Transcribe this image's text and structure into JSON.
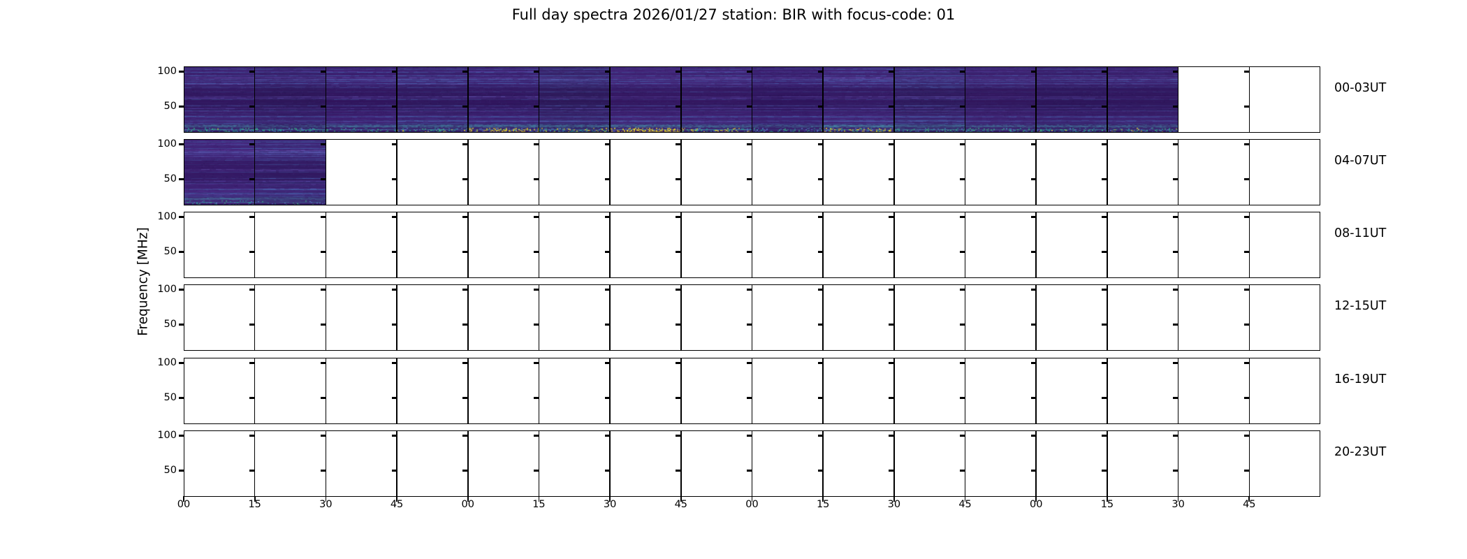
{
  "title": "Full day spectra 2026/01/27 station: BIR with focus-code: 01",
  "y_axis_label": "Frequency [MHz]",
  "y_tick_labels": [
    "100",
    "50"
  ],
  "x_tick_labels": [
    "00",
    "15",
    "30",
    "45",
    "00",
    "15",
    "30",
    "45",
    "00",
    "15",
    "30",
    "45",
    "00",
    "15",
    "30",
    "45"
  ],
  "rows": [
    {
      "label": "00-03UT",
      "filled_segments": 14,
      "low_band_activity": [
        0.5,
        0.45,
        0.4,
        0.55,
        0.8,
        0.6,
        0.95,
        0.65,
        0.45,
        0.7,
        0.35,
        0.4,
        0.5,
        0.55
      ]
    },
    {
      "label": "04-07UT",
      "filled_segments": 2,
      "low_band_activity": [
        0.28,
        0.12
      ]
    },
    {
      "label": "08-11UT",
      "filled_segments": 0,
      "low_band_activity": []
    },
    {
      "label": "12-15UT",
      "filled_segments": 0,
      "low_band_activity": []
    },
    {
      "label": "16-19UT",
      "filled_segments": 0,
      "low_band_activity": []
    },
    {
      "label": "20-23UT",
      "filled_segments": 0,
      "low_band_activity": []
    }
  ],
  "colors": {
    "background": "#ffffff",
    "axis": "#000000",
    "spectro_base": "#3a1c6a",
    "spectro_base_row2": "#3e1e70",
    "striation_purple": "#62549e",
    "striation_blue": "#4864af",
    "low_band_cyan": "#46aab4",
    "speckle_cyan": "#21918c",
    "speckle_green": "#35b779",
    "speckle_light_green": "#5ec962",
    "speckle_yellow": "#fde725"
  },
  "chart_data": {
    "type": "heatmap",
    "title": "Full day spectra 2026/01/27 station: BIR with focus-code: 01",
    "station": "BIR",
    "date": "2026/01/27",
    "focus_code": "01",
    "ylabel": "Frequency [MHz]",
    "y_ticks_mhz": [
      50,
      100
    ],
    "ylim_mhz": [
      10,
      110
    ],
    "x_tick_labels": [
      "00",
      "15",
      "30",
      "45",
      "00",
      "15",
      "30",
      "45",
      "00",
      "15",
      "30",
      "45",
      "00",
      "15",
      "30",
      "45"
    ],
    "segment_minutes": 15,
    "segments_per_row": 16,
    "colormap": "viridis",
    "legend_position": "right-of-rows",
    "grid": "15-minute segment borders",
    "row_windows": [
      "00-03UT",
      "04-07UT",
      "08-11UT",
      "12-15UT",
      "16-19UT",
      "20-23UT"
    ],
    "coverage": [
      {
        "window": "00-03UT",
        "filled_segments": 14,
        "data_from": "00:00",
        "data_to": "03:30"
      },
      {
        "window": "04-07UT",
        "filled_segments": 2,
        "data_from": "04:00",
        "data_to": "04:30"
      },
      {
        "window": "08-11UT",
        "filled_segments": 0,
        "data_from": "",
        "data_to": ""
      },
      {
        "window": "12-15UT",
        "filled_segments": 0,
        "data_from": "",
        "data_to": ""
      },
      {
        "window": "16-19UT",
        "filled_segments": 0,
        "data_from": "",
        "data_to": ""
      },
      {
        "window": "20-23UT",
        "filled_segments": 0,
        "data_from": "",
        "data_to": ""
      }
    ],
    "low_band_activity_per_segment": {
      "00-03UT": [
        0.5,
        0.45,
        0.4,
        0.55,
        0.8,
        0.6,
        0.95,
        0.65,
        0.45,
        0.7,
        0.35,
        0.4,
        0.5,
        0.55
      ],
      "04-07UT": [
        0.28,
        0.12
      ]
    }
  }
}
